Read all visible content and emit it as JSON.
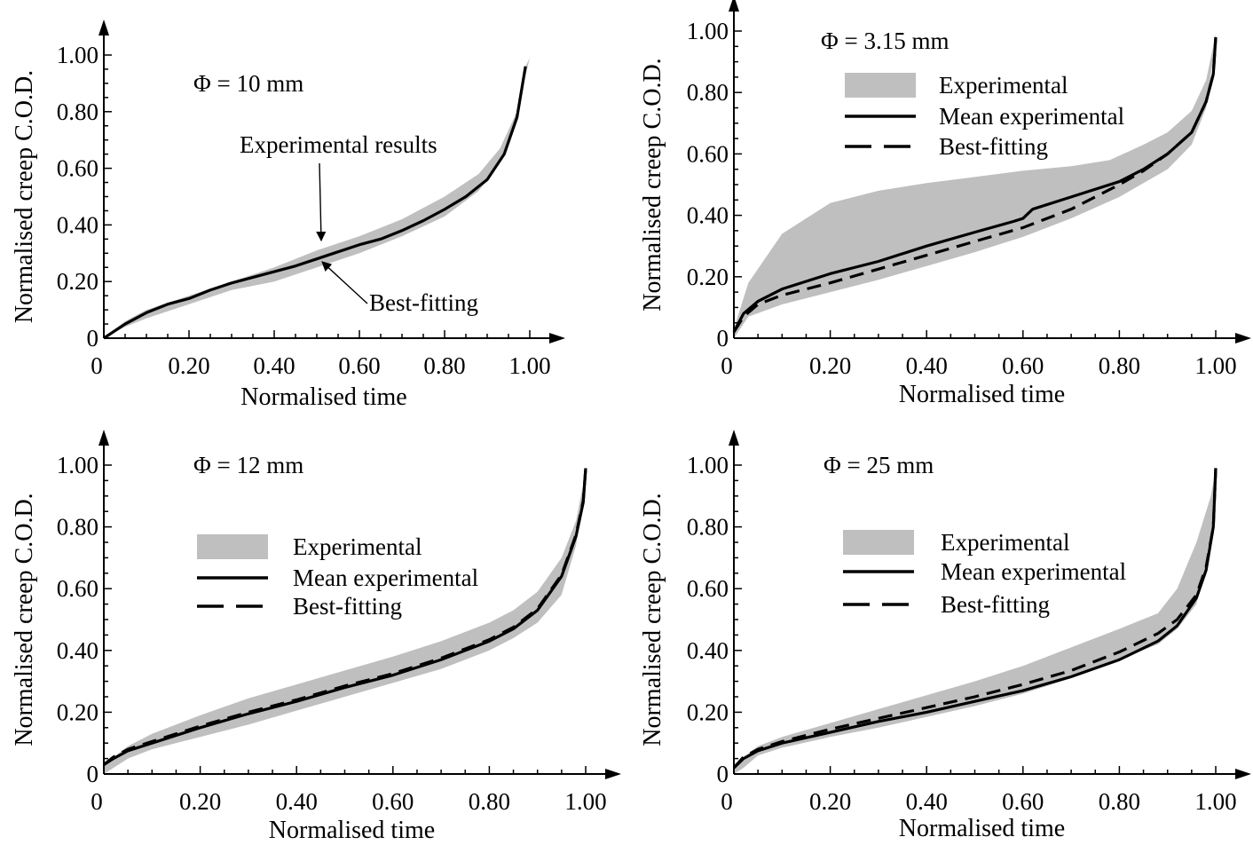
{
  "chart_data": [
    {
      "type": "line",
      "annotation": "Φ = 10 mm",
      "xlabel": "Normalised time",
      "ylabel": "Normalised creep C.O.D.",
      "xlim": [
        0,
        1.0
      ],
      "ylim": [
        0,
        1.0
      ],
      "x_ticks": [
        "0",
        "0.20",
        "0.40",
        "0.60",
        "0.80",
        "1.00"
      ],
      "y_ticks": [
        "0",
        "0.20",
        "0.40",
        "0.60",
        "0.80",
        "1.00"
      ],
      "legend": [],
      "callouts": [
        {
          "text": "Experimental results",
          "target": [
            0.45,
            0.34
          ]
        },
        {
          "text": "Best-fitting",
          "target": [
            0.47,
            0.27
          ]
        }
      ],
      "band": {
        "upper": [
          [
            0,
            0
          ],
          [
            0.05,
            0.06
          ],
          [
            0.1,
            0.1
          ],
          [
            0.2,
            0.15
          ],
          [
            0.3,
            0.2
          ],
          [
            0.4,
            0.25
          ],
          [
            0.5,
            0.31
          ],
          [
            0.6,
            0.36
          ],
          [
            0.7,
            0.42
          ],
          [
            0.8,
            0.5
          ],
          [
            0.88,
            0.58
          ],
          [
            0.93,
            0.67
          ],
          [
            0.97,
            0.8
          ],
          [
            1.0,
            0.99
          ]
        ],
        "lower": [
          [
            0,
            0
          ],
          [
            0.05,
            0.04
          ],
          [
            0.1,
            0.07
          ],
          [
            0.2,
            0.12
          ],
          [
            0.3,
            0.17
          ],
          [
            0.4,
            0.2
          ],
          [
            0.5,
            0.25
          ],
          [
            0.6,
            0.3
          ],
          [
            0.7,
            0.36
          ],
          [
            0.8,
            0.43
          ],
          [
            0.88,
            0.52
          ],
          [
            0.93,
            0.62
          ],
          [
            0.97,
            0.77
          ],
          [
            0.99,
            0.96
          ]
        ]
      },
      "series": [
        {
          "name": "",
          "style": "solid",
          "points": [
            [
              0,
              0
            ],
            [
              0.05,
              0.05
            ],
            [
              0.1,
              0.09
            ],
            [
              0.15,
              0.12
            ],
            [
              0.2,
              0.14
            ],
            [
              0.25,
              0.17
            ],
            [
              0.3,
              0.195
            ],
            [
              0.35,
              0.215
            ],
            [
              0.4,
              0.235
            ],
            [
              0.45,
              0.255
            ],
            [
              0.5,
              0.28
            ],
            [
              0.55,
              0.305
            ],
            [
              0.6,
              0.33
            ],
            [
              0.65,
              0.35
            ],
            [
              0.7,
              0.38
            ],
            [
              0.75,
              0.415
            ],
            [
              0.8,
              0.455
            ],
            [
              0.85,
              0.5
            ],
            [
              0.9,
              0.56
            ],
            [
              0.94,
              0.65
            ],
            [
              0.97,
              0.78
            ],
            [
              0.99,
              0.96
            ]
          ]
        }
      ]
    },
    {
      "type": "line",
      "annotation": "Φ = 3.15 mm",
      "xlabel": "Normalised time",
      "ylabel": "Normalised creep C.O.D.",
      "xlim": [
        0,
        1.0
      ],
      "ylim": [
        0,
        1.0
      ],
      "x_ticks": [
        "0",
        "0.20",
        "0.40",
        "0.60",
        "0.80",
        "1.00"
      ],
      "y_ticks": [
        "0",
        "0.20",
        "0.40",
        "0.60",
        "0.80",
        "1.00"
      ],
      "legend": [
        "Experimental",
        "Mean experimental",
        "Best-fitting"
      ],
      "callouts": [],
      "band": {
        "upper": [
          [
            0,
            0.03
          ],
          [
            0.03,
            0.18
          ],
          [
            0.1,
            0.34
          ],
          [
            0.2,
            0.44
          ],
          [
            0.3,
            0.48
          ],
          [
            0.4,
            0.505
          ],
          [
            0.5,
            0.525
          ],
          [
            0.6,
            0.545
          ],
          [
            0.7,
            0.56
          ],
          [
            0.78,
            0.58
          ],
          [
            0.85,
            0.63
          ],
          [
            0.9,
            0.67
          ],
          [
            0.95,
            0.74
          ],
          [
            0.98,
            0.84
          ],
          [
            1.0,
            0.99
          ]
        ],
        "lower": [
          [
            0,
            0.0
          ],
          [
            0.03,
            0.07
          ],
          [
            0.1,
            0.11
          ],
          [
            0.2,
            0.15
          ],
          [
            0.3,
            0.19
          ],
          [
            0.4,
            0.235
          ],
          [
            0.5,
            0.28
          ],
          [
            0.6,
            0.33
          ],
          [
            0.7,
            0.39
          ],
          [
            0.8,
            0.46
          ],
          [
            0.9,
            0.55
          ],
          [
            0.95,
            0.63
          ],
          [
            0.98,
            0.75
          ],
          [
            1.0,
            0.97
          ]
        ]
      },
      "series": [
        {
          "name": "Mean experimental",
          "style": "solid",
          "points": [
            [
              0,
              0.02
            ],
            [
              0.02,
              0.08
            ],
            [
              0.05,
              0.12
            ],
            [
              0.1,
              0.16
            ],
            [
              0.15,
              0.185
            ],
            [
              0.2,
              0.21
            ],
            [
              0.3,
              0.25
            ],
            [
              0.4,
              0.3
            ],
            [
              0.5,
              0.345
            ],
            [
              0.58,
              0.38
            ],
            [
              0.6,
              0.39
            ],
            [
              0.62,
              0.42
            ],
            [
              0.7,
              0.46
            ],
            [
              0.8,
              0.51
            ],
            [
              0.85,
              0.55
            ],
            [
              0.9,
              0.6
            ],
            [
              0.95,
              0.67
            ],
            [
              0.98,
              0.77
            ],
            [
              0.995,
              0.86
            ],
            [
              1.0,
              0.98
            ]
          ]
        },
        {
          "name": "Best-fitting",
          "style": "dashed",
          "points": [
            [
              0,
              0.02
            ],
            [
              0.02,
              0.07
            ],
            [
              0.05,
              0.11
            ],
            [
              0.1,
              0.14
            ],
            [
              0.2,
              0.18
            ],
            [
              0.3,
              0.225
            ],
            [
              0.4,
              0.27
            ],
            [
              0.5,
              0.315
            ],
            [
              0.6,
              0.36
            ],
            [
              0.7,
              0.42
            ],
            [
              0.8,
              0.5
            ],
            [
              0.85,
              0.545
            ],
            [
              0.9,
              0.6
            ],
            [
              0.95,
              0.67
            ],
            [
              0.98,
              0.77
            ],
            [
              0.995,
              0.86
            ],
            [
              1.0,
              0.98
            ]
          ]
        }
      ]
    },
    {
      "type": "line",
      "annotation": "Φ = 12 mm",
      "xlabel": "Normalised time",
      "ylabel": "Normalised creep C.O.D.",
      "xlim": [
        0,
        1.0
      ],
      "ylim": [
        0,
        1.0
      ],
      "x_ticks": [
        "0",
        "0.20",
        "0.40",
        "0.60",
        "0.80",
        "1.00"
      ],
      "y_ticks": [
        "0",
        "0.20",
        "0.40",
        "0.60",
        "0.80",
        "1.00"
      ],
      "legend": [
        "Experimental",
        "Mean experimental",
        "Best-fitting"
      ],
      "callouts": [],
      "band": {
        "upper": [
          [
            0,
            0.03
          ],
          [
            0.05,
            0.09
          ],
          [
            0.1,
            0.13
          ],
          [
            0.2,
            0.19
          ],
          [
            0.3,
            0.245
          ],
          [
            0.4,
            0.29
          ],
          [
            0.5,
            0.335
          ],
          [
            0.6,
            0.38
          ],
          [
            0.7,
            0.43
          ],
          [
            0.8,
            0.49
          ],
          [
            0.85,
            0.53
          ],
          [
            0.9,
            0.59
          ],
          [
            0.95,
            0.7
          ],
          [
            0.98,
            0.82
          ],
          [
            1.0,
            0.98
          ]
        ],
        "lower": [
          [
            0,
            0.0
          ],
          [
            0.05,
            0.05
          ],
          [
            0.1,
            0.08
          ],
          [
            0.2,
            0.12
          ],
          [
            0.3,
            0.16
          ],
          [
            0.4,
            0.205
          ],
          [
            0.5,
            0.25
          ],
          [
            0.6,
            0.295
          ],
          [
            0.7,
            0.34
          ],
          [
            0.8,
            0.4
          ],
          [
            0.85,
            0.44
          ],
          [
            0.9,
            0.49
          ],
          [
            0.95,
            0.58
          ],
          [
            0.98,
            0.74
          ],
          [
            1.0,
            0.95
          ]
        ]
      },
      "series": [
        {
          "name": "Mean experimental",
          "style": "solid",
          "points": [
            [
              0,
              0.03
            ],
            [
              0.02,
              0.05
            ],
            [
              0.05,
              0.075
            ],
            [
              0.1,
              0.1
            ],
            [
              0.2,
              0.15
            ],
            [
              0.3,
              0.195
            ],
            [
              0.4,
              0.235
            ],
            [
              0.5,
              0.28
            ],
            [
              0.6,
              0.32
            ],
            [
              0.7,
              0.37
            ],
            [
              0.8,
              0.43
            ],
            [
              0.85,
              0.47
            ],
            [
              0.9,
              0.53
            ],
            [
              0.95,
              0.64
            ],
            [
              0.98,
              0.77
            ],
            [
              0.995,
              0.88
            ],
            [
              1.0,
              0.99
            ]
          ]
        },
        {
          "name": "Best-fitting",
          "style": "dashed",
          "points": [
            [
              0,
              0.03
            ],
            [
              0.02,
              0.055
            ],
            [
              0.05,
              0.08
            ],
            [
              0.1,
              0.105
            ],
            [
              0.2,
              0.155
            ],
            [
              0.3,
              0.2
            ],
            [
              0.4,
              0.24
            ],
            [
              0.5,
              0.285
            ],
            [
              0.6,
              0.325
            ],
            [
              0.7,
              0.375
            ],
            [
              0.8,
              0.435
            ],
            [
              0.85,
              0.475
            ],
            [
              0.9,
              0.535
            ],
            [
              0.95,
              0.645
            ],
            [
              0.98,
              0.775
            ],
            [
              0.995,
              0.885
            ],
            [
              1.0,
              0.99
            ]
          ]
        }
      ]
    },
    {
      "type": "line",
      "annotation": "Φ = 25 mm",
      "xlabel": "Normalised time",
      "ylabel": "Normalised creep C.O.D.",
      "xlim": [
        0,
        1.0
      ],
      "ylim": [
        0,
        1.0
      ],
      "x_ticks": [
        "0",
        "0.20",
        "0.40",
        "0.60",
        "0.80",
        "1.00"
      ],
      "y_ticks": [
        "0",
        "0.20",
        "0.40",
        "0.60",
        "0.80",
        "1.00"
      ],
      "legend": [
        "Experimental",
        "Mean experimental",
        "Best-fitting"
      ],
      "callouts": [],
      "band": {
        "upper": [
          [
            0,
            0.03
          ],
          [
            0.05,
            0.09
          ],
          [
            0.1,
            0.12
          ],
          [
            0.2,
            0.165
          ],
          [
            0.3,
            0.21
          ],
          [
            0.4,
            0.255
          ],
          [
            0.5,
            0.3
          ],
          [
            0.6,
            0.35
          ],
          [
            0.7,
            0.41
          ],
          [
            0.8,
            0.47
          ],
          [
            0.88,
            0.52
          ],
          [
            0.92,
            0.6
          ],
          [
            0.96,
            0.75
          ],
          [
            0.99,
            0.9
          ],
          [
            1.0,
            0.99
          ]
        ],
        "lower": [
          [
            0,
            0.0
          ],
          [
            0.02,
            0.02
          ],
          [
            0.05,
            0.06
          ],
          [
            0.1,
            0.085
          ],
          [
            0.2,
            0.12
          ],
          [
            0.3,
            0.15
          ],
          [
            0.4,
            0.185
          ],
          [
            0.5,
            0.22
          ],
          [
            0.6,
            0.26
          ],
          [
            0.7,
            0.31
          ],
          [
            0.8,
            0.37
          ],
          [
            0.88,
            0.42
          ],
          [
            0.92,
            0.47
          ],
          [
            0.96,
            0.55
          ],
          [
            0.99,
            0.75
          ],
          [
            1.0,
            0.95
          ]
        ]
      },
      "series": [
        {
          "name": "Mean experimental",
          "style": "solid",
          "points": [
            [
              0,
              0.02
            ],
            [
              0.02,
              0.05
            ],
            [
              0.05,
              0.075
            ],
            [
              0.1,
              0.1
            ],
            [
              0.2,
              0.135
            ],
            [
              0.3,
              0.17
            ],
            [
              0.4,
              0.2
            ],
            [
              0.5,
              0.235
            ],
            [
              0.6,
              0.27
            ],
            [
              0.7,
              0.315
            ],
            [
              0.8,
              0.37
            ],
            [
              0.88,
              0.43
            ],
            [
              0.92,
              0.48
            ],
            [
              0.96,
              0.57
            ],
            [
              0.98,
              0.66
            ],
            [
              0.995,
              0.8
            ],
            [
              1.0,
              0.99
            ]
          ]
        },
        {
          "name": "Best-fitting",
          "style": "dashed",
          "points": [
            [
              0,
              0.02
            ],
            [
              0.02,
              0.055
            ],
            [
              0.05,
              0.08
            ],
            [
              0.1,
              0.105
            ],
            [
              0.2,
              0.145
            ],
            [
              0.3,
              0.18
            ],
            [
              0.4,
              0.215
            ],
            [
              0.5,
              0.25
            ],
            [
              0.6,
              0.29
            ],
            [
              0.7,
              0.335
            ],
            [
              0.8,
              0.395
            ],
            [
              0.88,
              0.455
            ],
            [
              0.92,
              0.5
            ],
            [
              0.96,
              0.58
            ],
            [
              0.98,
              0.67
            ],
            [
              0.995,
              0.8
            ],
            [
              1.0,
              0.99
            ]
          ]
        }
      ]
    }
  ],
  "colors": {
    "band": "#bfbfbf",
    "line": "#000000"
  }
}
